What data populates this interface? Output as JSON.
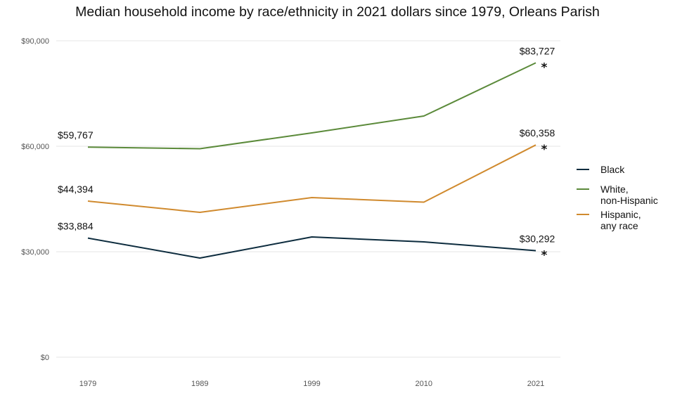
{
  "chart_data": {
    "type": "line",
    "title": "Median household income by race/ethnicity in 2021 dollars since 1979, Orleans Parish",
    "xlabel": "",
    "ylabel": "",
    "categories": [
      "1979",
      "1989",
      "1999",
      "2010",
      "2021"
    ],
    "ylim": [
      0,
      90000
    ],
    "yticks": [
      0,
      30000,
      60000,
      90000
    ],
    "ytick_labels": [
      "$0",
      "$30,000",
      "$60,000",
      "$90,000"
    ],
    "grid": "horizontal",
    "legend_position": "right",
    "series": [
      {
        "name": "Black",
        "color": "#0d2c3e",
        "values": [
          33884,
          28200,
          34200,
          32800,
          30292
        ],
        "labels": {
          "0": "$33,884",
          "4": "$30,292"
        },
        "star_last": true
      },
      {
        "name": "White, non-Hispanic",
        "legend_lines": [
          "White,",
          "non-Hispanic"
        ],
        "color": "#5b8a3a",
        "values": [
          59767,
          59300,
          63800,
          68600,
          83727
        ],
        "labels": {
          "0": "$59,767",
          "4": "$83,727"
        },
        "star_last": true
      },
      {
        "name": "Hispanic, any race",
        "legend_lines": [
          "Hispanic,",
          "any race"
        ],
        "color": "#d08a2e",
        "values": [
          44394,
          41200,
          45400,
          44100,
          60358
        ],
        "labels": {
          "0": "$44,394",
          "4": "$60,358"
        },
        "star_last": true
      }
    ],
    "annotation_symbol": "*"
  }
}
